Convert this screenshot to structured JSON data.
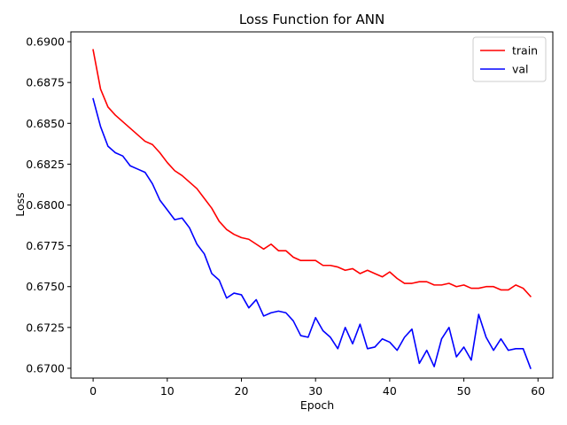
{
  "chart_data": {
    "type": "line",
    "title": "Loss Function for ANN",
    "xlabel": "Epoch",
    "ylabel": "Loss",
    "xlim": [
      -3,
      62
    ],
    "ylim": [
      0.6694,
      0.6906
    ],
    "xticks": [
      0,
      10,
      20,
      30,
      40,
      50,
      60
    ],
    "xtick_labels": [
      "0",
      "10",
      "20",
      "30",
      "40",
      "50",
      "60"
    ],
    "yticks": [
      0.67,
      0.6725,
      0.675,
      0.6775,
      0.68,
      0.6825,
      0.685,
      0.6875,
      0.69
    ],
    "ytick_labels": [
      "0.6700",
      "0.6725",
      "0.6750",
      "0.6775",
      "0.6800",
      "0.6825",
      "0.6850",
      "0.6875",
      "0.6900"
    ],
    "grid": false,
    "legend_position": "top-right",
    "x": [
      0,
      1,
      2,
      3,
      4,
      5,
      6,
      7,
      8,
      9,
      10,
      11,
      12,
      13,
      14,
      15,
      16,
      17,
      18,
      19,
      20,
      21,
      22,
      23,
      24,
      25,
      26,
      27,
      28,
      29,
      30,
      31,
      32,
      33,
      34,
      35,
      36,
      37,
      38,
      39,
      40,
      41,
      42,
      43,
      44,
      45,
      46,
      47,
      48,
      49,
      50,
      51,
      52,
      53,
      54,
      55,
      56,
      57,
      58,
      59
    ],
    "series": [
      {
        "name": "train",
        "color": "#ff0000",
        "values": [
          0.6895,
          0.6871,
          0.686,
          0.6855,
          0.6851,
          0.6847,
          0.6843,
          0.6839,
          0.6837,
          0.6832,
          0.6826,
          0.6821,
          0.6818,
          0.6814,
          0.681,
          0.6804,
          0.6798,
          0.679,
          0.6785,
          0.6782,
          0.678,
          0.6779,
          0.6776,
          0.6773,
          0.6776,
          0.6772,
          0.6772,
          0.6768,
          0.6766,
          0.6766,
          0.6766,
          0.6763,
          0.6763,
          0.6762,
          0.676,
          0.6761,
          0.6758,
          0.676,
          0.6758,
          0.6756,
          0.6759,
          0.6755,
          0.6752,
          0.6752,
          0.6753,
          0.6753,
          0.6751,
          0.6751,
          0.6752,
          0.675,
          0.6751,
          0.6749,
          0.6749,
          0.675,
          0.675,
          0.6748,
          0.6748,
          0.6751,
          0.6749,
          0.6744
        ]
      },
      {
        "name": "val",
        "color": "#0000ff",
        "values": [
          0.6865,
          0.6848,
          0.6836,
          0.6832,
          0.683,
          0.6824,
          0.6822,
          0.682,
          0.6813,
          0.6803,
          0.6797,
          0.6791,
          0.6792,
          0.6786,
          0.6776,
          0.677,
          0.6758,
          0.6754,
          0.6743,
          0.6746,
          0.6745,
          0.6737,
          0.6742,
          0.6732,
          0.6734,
          0.6735,
          0.6734,
          0.6729,
          0.672,
          0.6719,
          0.6731,
          0.6723,
          0.6719,
          0.6712,
          0.6725,
          0.6715,
          0.6727,
          0.6712,
          0.6713,
          0.6718,
          0.6716,
          0.6711,
          0.6719,
          0.6724,
          0.6703,
          0.6711,
          0.6701,
          0.6718,
          0.6725,
          0.6707,
          0.6713,
          0.6705,
          0.6733,
          0.6719,
          0.6711,
          0.6718,
          0.6711,
          0.6712,
          0.6712,
          0.67
        ]
      }
    ]
  }
}
